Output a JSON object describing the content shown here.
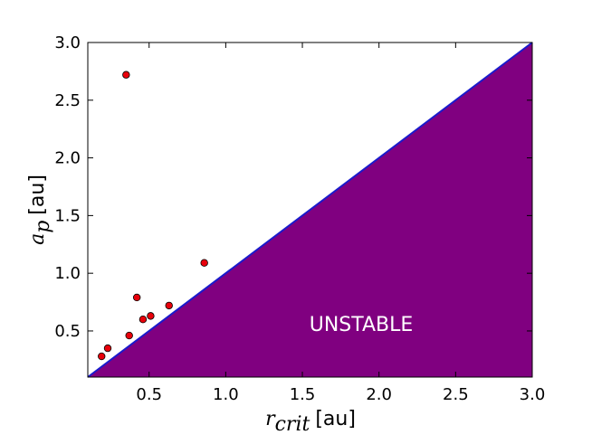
{
  "chart_data": {
    "type": "scatter",
    "xlim": [
      0.1,
      3.0
    ],
    "ylim": [
      0.1,
      3.0
    ],
    "x_ticks": [
      0.5,
      1.0,
      1.5,
      2.0,
      2.5,
      3.0
    ],
    "x_tick_labels": [
      "0.5",
      "1.0",
      "1.5",
      "2.0",
      "2.5",
      "3.0"
    ],
    "y_ticks": [
      0.5,
      1.0,
      1.5,
      2.0,
      2.5,
      3.0
    ],
    "y_tick_labels": [
      "0.5",
      "1.0",
      "1.5",
      "2.0",
      "2.5",
      "3.0"
    ],
    "xlabel_symbol": "r",
    "xlabel_subscript": "crit",
    "xlabel_unit": "[au]",
    "ylabel_symbol": "a",
    "ylabel_subscript": "p",
    "ylabel_unit": "[au]",
    "grid": false,
    "points": {
      "x": [
        0.19,
        0.23,
        0.35,
        0.37,
        0.42,
        0.46,
        0.51,
        0.63,
        0.86
      ],
      "y": [
        0.28,
        0.35,
        2.72,
        0.46,
        0.79,
        0.6,
        0.63,
        0.72,
        1.09
      ]
    },
    "unstable_region": {
      "label": "UNSTABLE",
      "boundary": "y = x"
    },
    "colors": {
      "points": "#e8000b",
      "point_edge": "#000000",
      "unstable_fill": "#800080",
      "boundary_line": "#1a1acc"
    }
  }
}
